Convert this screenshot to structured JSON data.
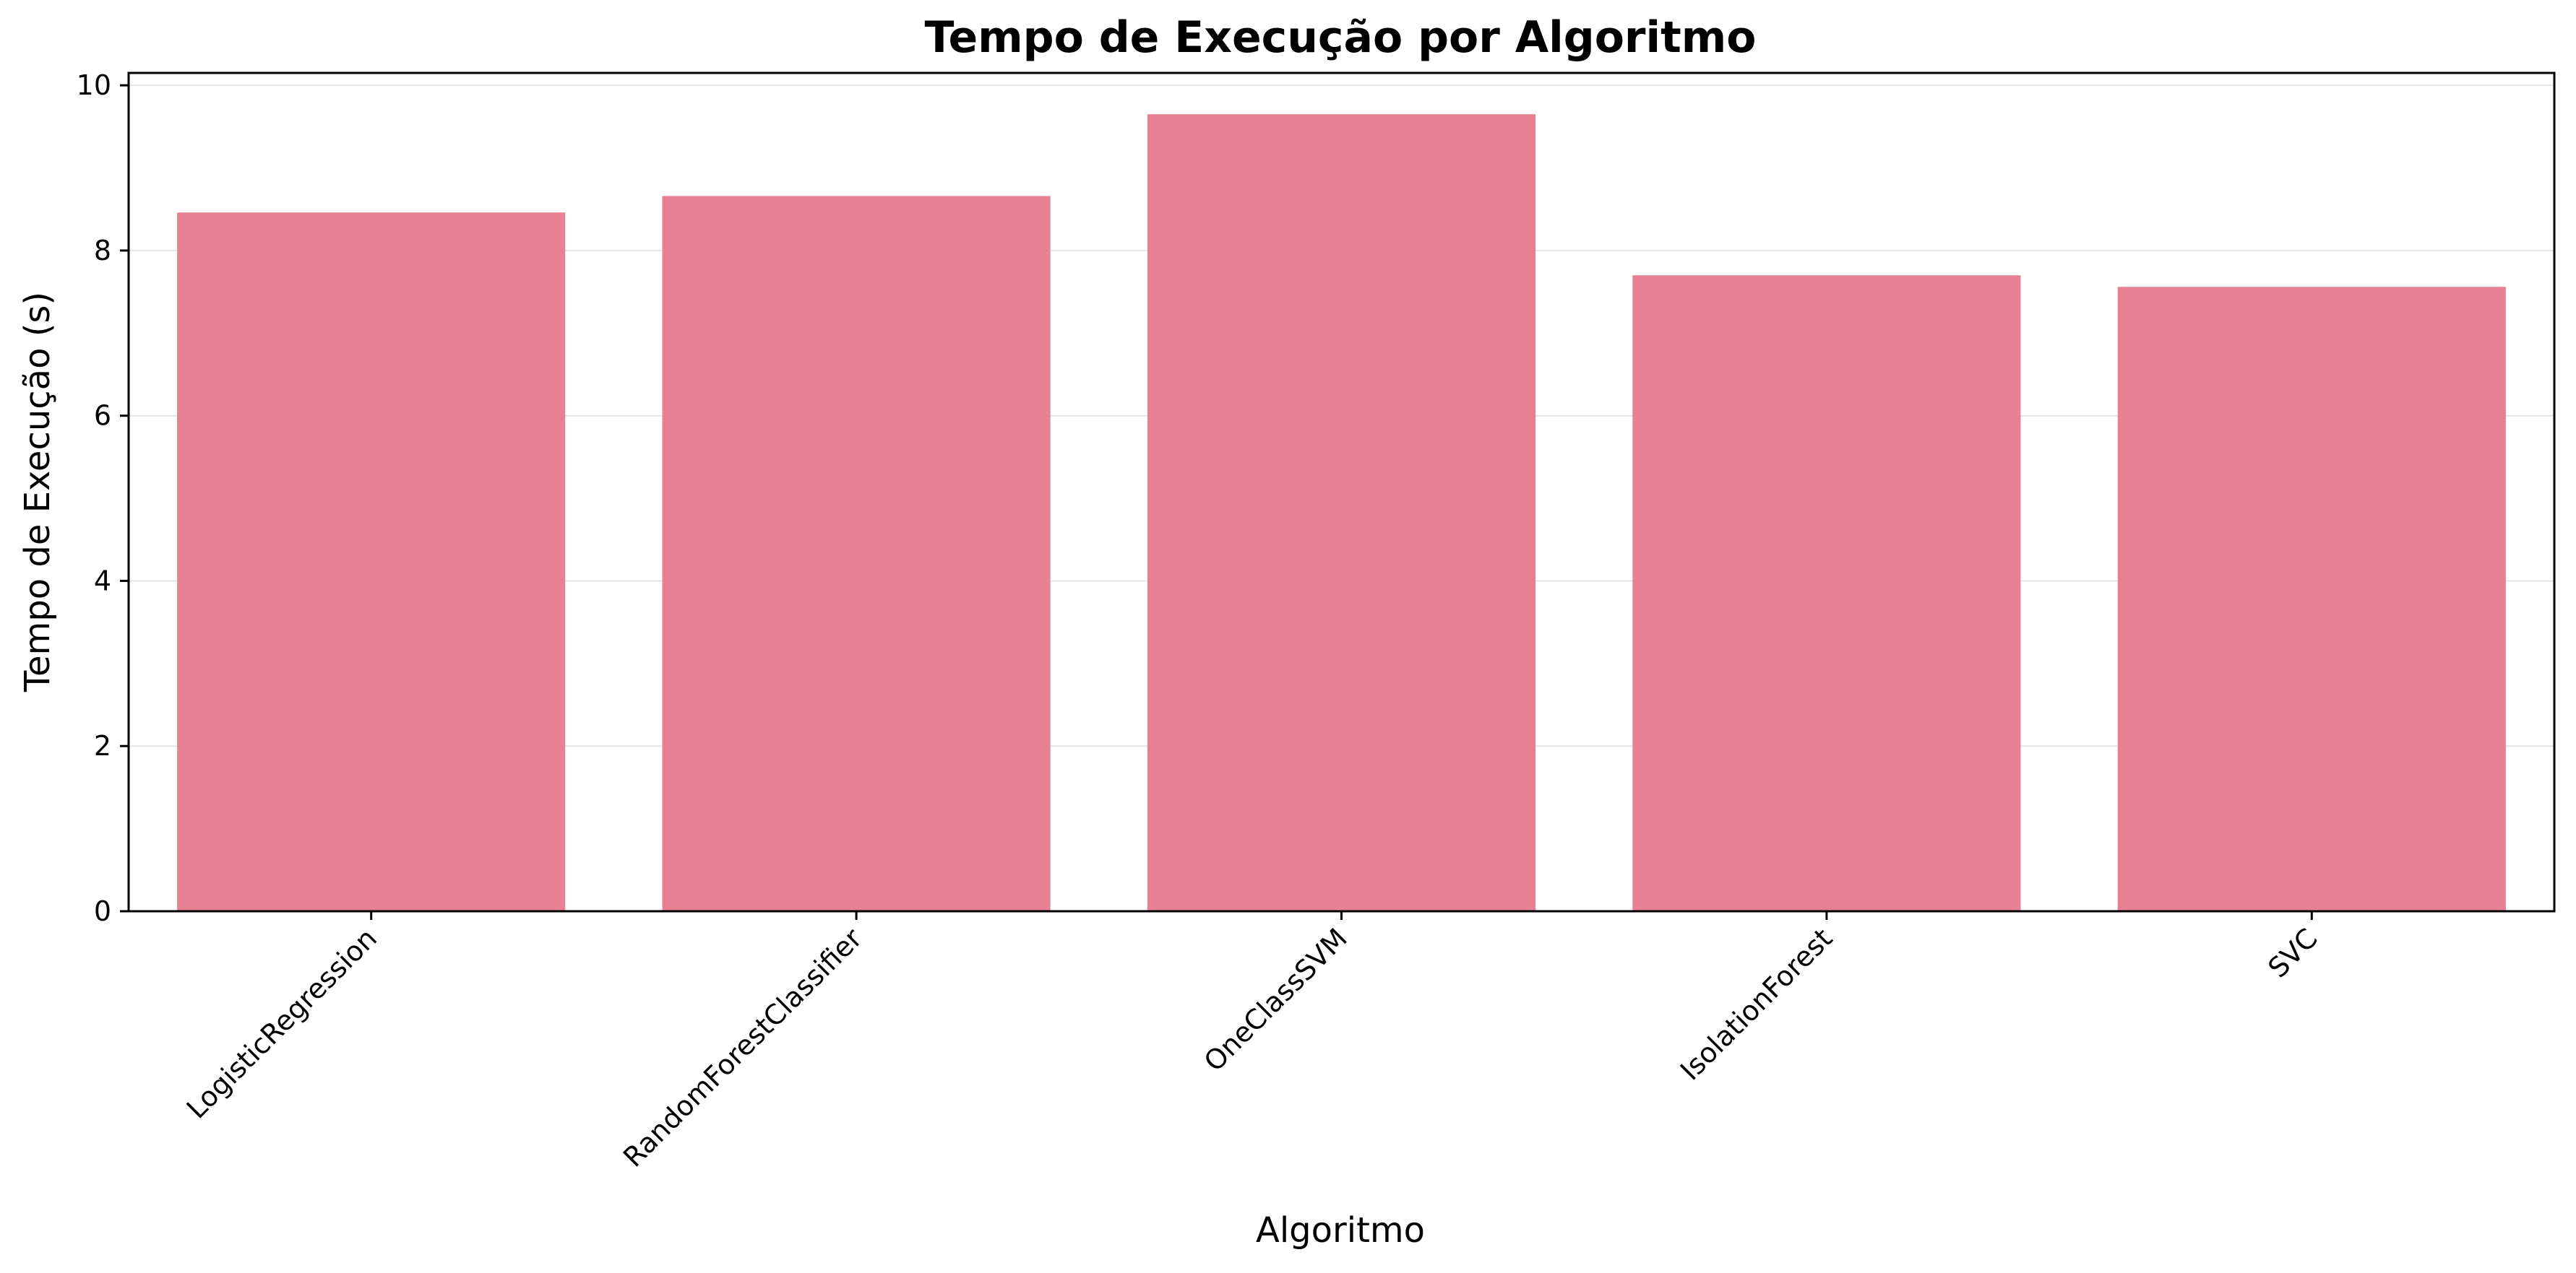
{
  "chart_data": {
    "type": "bar",
    "title": "Tempo de Execução por Algoritmo",
    "xlabel": "Algoritmo",
    "ylabel": "Tempo de Execução (s)",
    "categories": [
      "LogisticRegression",
      "RandomForestClassifier",
      "OneClassSVM",
      "IsolationForest",
      "SVC"
    ],
    "values": [
      8.46,
      8.66,
      9.65,
      7.7,
      7.56
    ],
    "ylim": [
      0,
      10.15
    ],
    "yticks": [
      "0",
      "2",
      "4",
      "6",
      "8",
      "10"
    ],
    "grid": "horizontal",
    "bar_color": "#e88093",
    "legend": "none"
  }
}
